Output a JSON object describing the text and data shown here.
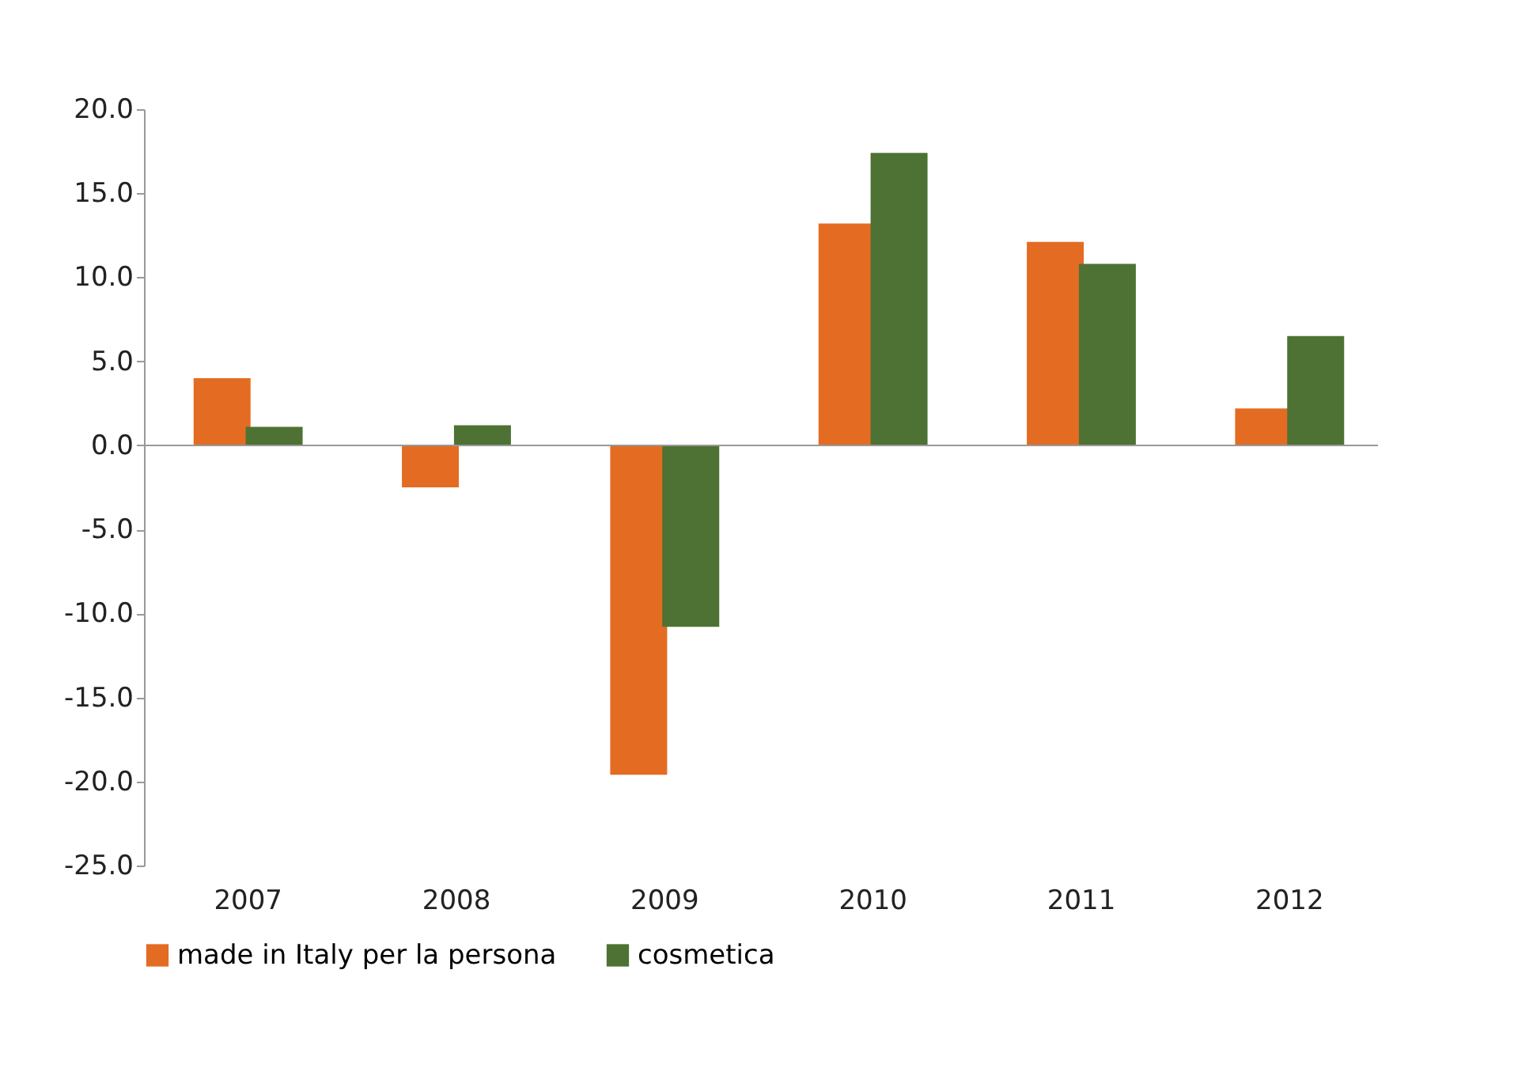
{
  "chart_data": {
    "type": "bar",
    "categories": [
      "2007",
      "2008",
      "2009",
      "2010",
      "2011",
      "2012"
    ],
    "series": [
      {
        "name": "made in Italy per la persona",
        "color": "#e36c22",
        "values": [
          4.0,
          -2.5,
          -19.6,
          13.2,
          12.1,
          2.2
        ]
      },
      {
        "name": "cosmetica",
        "color": "#4e7233",
        "values": [
          1.1,
          1.2,
          -10.8,
          17.4,
          10.8,
          6.5
        ]
      }
    ],
    "ylim": [
      -25,
      20
    ],
    "yticks": [
      {
        "value": -25,
        "label": "-25.0"
      },
      {
        "value": -20,
        "label": "-20.0"
      },
      {
        "value": -15,
        "label": "-15.0"
      },
      {
        "value": -10,
        "label": "-10.0"
      },
      {
        "value": -5,
        "label": "-5.0"
      },
      {
        "value": 0,
        "label": "0.0"
      },
      {
        "value": 5,
        "label": "5.0"
      },
      {
        "value": 10,
        "label": "10.0"
      },
      {
        "value": 15,
        "label": "15.0"
      },
      {
        "value": 20,
        "label": "20.0"
      }
    ],
    "legend": "bottom"
  }
}
